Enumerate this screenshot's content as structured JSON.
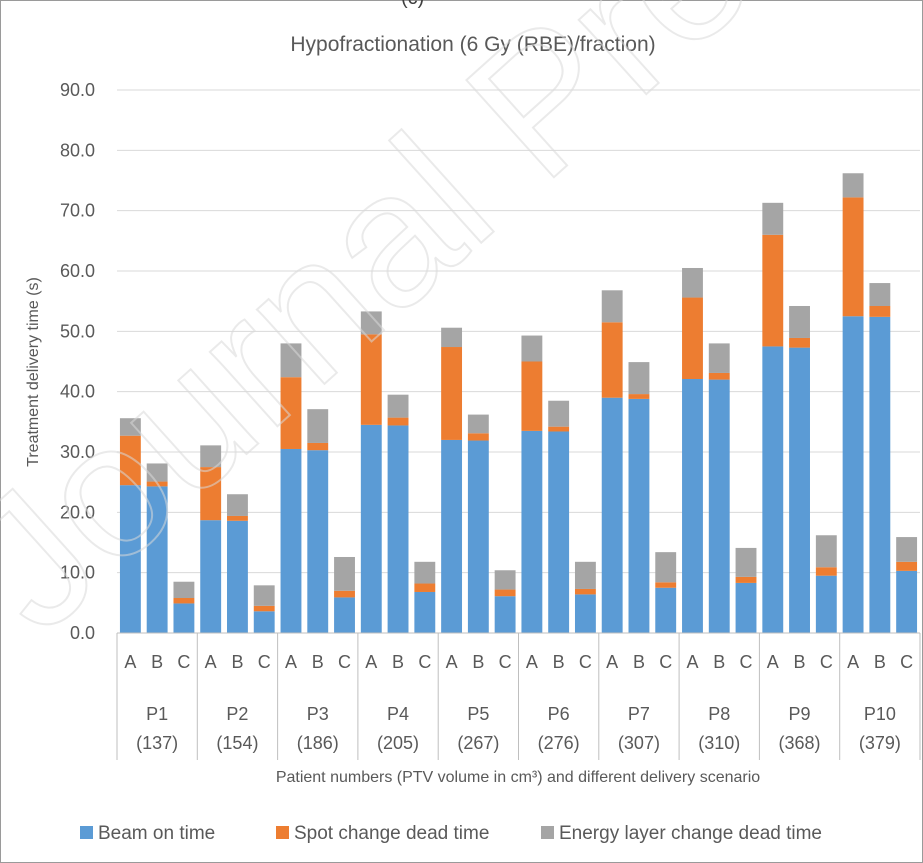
{
  "top_fragment": "(c)",
  "chart_data": {
    "type": "stacked-bar",
    "title": "Hypofractionation (6 Gy (RBE)/fraction)",
    "ylabel": "Treatment delivery time (s)",
    "xlabel": "Patient numbers (PTV volume in cm³) and different delivery scenario",
    "ylim": [
      0,
      90
    ],
    "y_ticks": [
      "0.0",
      "10.0",
      "20.0",
      "30.0",
      "40.0",
      "50.0",
      "60.0",
      "70.0",
      "80.0",
      "90.0"
    ],
    "grid": true,
    "legend_position": "bottom",
    "scenarios": [
      "A",
      "B",
      "C"
    ],
    "groups": [
      {
        "label": "P1",
        "volume": "(137)"
      },
      {
        "label": "P2",
        "volume": "(154)"
      },
      {
        "label": "P3",
        "volume": "(186)"
      },
      {
        "label": "P4",
        "volume": "(205)"
      },
      {
        "label": "P5",
        "volume": "(267)"
      },
      {
        "label": "P6",
        "volume": "(276)"
      },
      {
        "label": "P7",
        "volume": "(307)"
      },
      {
        "label": "P8",
        "volume": "(310)"
      },
      {
        "label": "P9",
        "volume": "(368)"
      },
      {
        "label": "P10",
        "volume": "(379)"
      }
    ],
    "series": [
      {
        "name": "Beam on time",
        "color": "#5b9bd5",
        "values": [
          [
            24.5,
            24.3,
            4.9
          ],
          [
            18.7,
            18.6,
            3.6
          ],
          [
            30.5,
            30.3,
            5.9
          ],
          [
            34.5,
            34.4,
            6.8
          ],
          [
            32.0,
            31.9,
            6.1
          ],
          [
            33.5,
            33.4,
            6.4
          ],
          [
            39.0,
            38.8,
            7.5
          ],
          [
            42.1,
            42.0,
            8.3
          ],
          [
            47.5,
            47.3,
            9.5
          ],
          [
            52.5,
            52.4,
            10.3
          ]
        ]
      },
      {
        "name": "Spot change dead time",
        "color": "#ed7d31",
        "values": [
          [
            8.2,
            0.8,
            0.9
          ],
          [
            8.8,
            0.8,
            0.9
          ],
          [
            11.9,
            1.2,
            1.1
          ],
          [
            15.0,
            1.3,
            1.4
          ],
          [
            15.4,
            1.2,
            1.1
          ],
          [
            11.5,
            0.8,
            0.9
          ],
          [
            12.5,
            0.8,
            0.9
          ],
          [
            13.5,
            1.1,
            1.0
          ],
          [
            18.5,
            1.6,
            1.4
          ],
          [
            19.7,
            1.8,
            1.5
          ]
        ]
      },
      {
        "name": "Energy layer change dead time",
        "color": "#a5a5a5",
        "values": [
          [
            2.9,
            3.0,
            2.7
          ],
          [
            3.6,
            3.6,
            3.4
          ],
          [
            5.6,
            5.6,
            5.6
          ],
          [
            3.8,
            3.8,
            3.6
          ],
          [
            3.2,
            3.1,
            3.2
          ],
          [
            4.3,
            4.3,
            4.5
          ],
          [
            5.3,
            5.3,
            5.0
          ],
          [
            4.9,
            4.9,
            4.8
          ],
          [
            5.3,
            5.3,
            5.3
          ],
          [
            4.0,
            3.8,
            4.1
          ]
        ]
      }
    ]
  },
  "watermark_text": "Journal Pre-proof"
}
